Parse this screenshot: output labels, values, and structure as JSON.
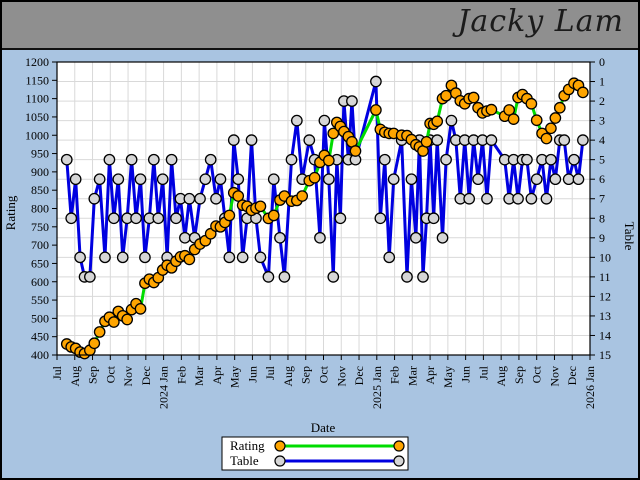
{
  "header": {
    "title": "Jacky Lam"
  },
  "chart_data": {
    "type": "line",
    "xlabel": "Date",
    "ylabel": "Rating",
    "y2label": "Table",
    "ylim": [
      400,
      1200
    ],
    "y2lim": [
      0,
      15
    ],
    "y2_inverted": true,
    "grid": true,
    "legend_position": "bottom-center",
    "y_ticks": [
      400,
      450,
      500,
      550,
      600,
      650,
      700,
      750,
      800,
      850,
      900,
      950,
      1000,
      1050,
      1100,
      1150,
      1200
    ],
    "y2_ticks": [
      0,
      1,
      2,
      3,
      4,
      5,
      6,
      7,
      8,
      9,
      10,
      11,
      12,
      13,
      14,
      15
    ],
    "x_tick_labels": [
      "Jul",
      "Aug",
      "Sep",
      "Oct",
      "Nov",
      "Dec",
      "2024 Jan",
      "Feb",
      "Mar",
      "Apr",
      "May",
      "Jun",
      "Jul",
      "Aug",
      "Sep",
      "Oct",
      "Nov",
      "Dec",
      "2025 Jan",
      "Feb",
      "Mar",
      "Apr",
      "May",
      "Jun",
      "Jul",
      "Aug",
      "Sep",
      "Oct",
      "Nov",
      "Dec",
      "2026 Jan"
    ],
    "x_unit": "months since Jul 2023 tick",
    "x": [
      0.55,
      0.8,
      1.05,
      1.3,
      1.55,
      1.85,
      2.1,
      2.4,
      2.7,
      2.95,
      3.2,
      3.45,
      3.7,
      3.95,
      4.2,
      4.45,
      4.7,
      4.95,
      5.2,
      5.45,
      5.7,
      5.95,
      6.2,
      6.45,
      6.7,
      6.95,
      7.2,
      7.45,
      7.75,
      8.05,
      8.35,
      8.65,
      8.95,
      9.2,
      9.45,
      9.7,
      9.95,
      10.2,
      10.45,
      10.7,
      10.95,
      11.2,
      11.45,
      11.9,
      12.2,
      12.55,
      12.8,
      13.2,
      13.5,
      13.8,
      14.2,
      14.5,
      14.8,
      15.05,
      15.3,
      15.55,
      15.75,
      15.95,
      16.15,
      16.4,
      16.6,
      16.8,
      17.95,
      18.2,
      18.45,
      18.7,
      18.95,
      19.4,
      19.7,
      19.95,
      20.2,
      20.4,
      20.6,
      20.8,
      21.0,
      21.2,
      21.4,
      21.7,
      21.9,
      22.2,
      22.45,
      22.7,
      22.95,
      23.2,
      23.45,
      23.7,
      23.95,
      24.2,
      24.45,
      25.2,
      25.45,
      25.7,
      25.95,
      26.2,
      26.45,
      26.7,
      27.0,
      27.3,
      27.55,
      27.8,
      28.05,
      28.3,
      28.55,
      28.8,
      29.1,
      29.35,
      29.6
    ],
    "series": [
      {
        "name": "Rating",
        "axis": "left",
        "line_color": "#00dc00",
        "marker_fill": "#ffa500",
        "marker_stroke": "#000000",
        "values": [
          430,
          422,
          418,
          408,
          404,
          413,
          432,
          463,
          492,
          503,
          490,
          519,
          507,
          497,
          524,
          540,
          526,
          596,
          607,
          598,
          611,
          632,
          645,
          638,
          656,
          668,
          671,
          661,
          688,
          703,
          712,
          731,
          752,
          750,
          762,
          781,
          843,
          834,
          809,
          806,
          795,
          801,
          806,
          773,
          781,
          823,
          834,
          820,
          822,
          834,
          876,
          884,
          926,
          945,
          931,
          1005,
          1035,
          1024,
          1010,
          996,
          982,
          957,
          1069,
          1016,
          1008,
          1005,
          1005,
          1000,
          999,
          988,
          974,
          968,
          957,
          982,
          1032,
          1030,
          1038,
          1100,
          1108,
          1136,
          1115,
          1094,
          1086,
          1100,
          1103,
          1075,
          1061,
          1066,
          1070,
          1052,
          1069,
          1044,
          1103,
          1111,
          1100,
          1086,
          1041,
          1005,
          991,
          1019,
          1047,
          1075,
          1108,
          1125,
          1142,
          1136,
          1117
        ]
      },
      {
        "name": "Table",
        "axis": "right",
        "line_color": "#0000e0",
        "marker_fill": "#d6d6d6",
        "marker_stroke": "#000000",
        "values": [
          5,
          8,
          6,
          10,
          11,
          11,
          7,
          6,
          10,
          5,
          8,
          6,
          10,
          8,
          5,
          8,
          6,
          10,
          8,
          5,
          8,
          6,
          10,
          5,
          8,
          7,
          9,
          7,
          9,
          7,
          6,
          5,
          7,
          6,
          8,
          10,
          4,
          6,
          10,
          8,
          4,
          8,
          10,
          11,
          6,
          9,
          11,
          5,
          3,
          6,
          4,
          5,
          9,
          3,
          6,
          11,
          5,
          8,
          2,
          5,
          2,
          5,
          1,
          8,
          5,
          10,
          6,
          4,
          11,
          6,
          9,
          4,
          11,
          8,
          4,
          8,
          4,
          9,
          5,
          3,
          4,
          7,
          4,
          7,
          4,
          6,
          4,
          7,
          4,
          5,
          7,
          5,
          7,
          5,
          5,
          7,
          6,
          5,
          7,
          5,
          6,
          4,
          4,
          6,
          5,
          6,
          4
        ]
      }
    ],
    "colors": {
      "plot_background": "#ffffff",
      "grid": "#d9d9d9",
      "axis": "#000000",
      "outer_background": "#a9c4e1",
      "header_bar": "#8f8f8f"
    }
  }
}
